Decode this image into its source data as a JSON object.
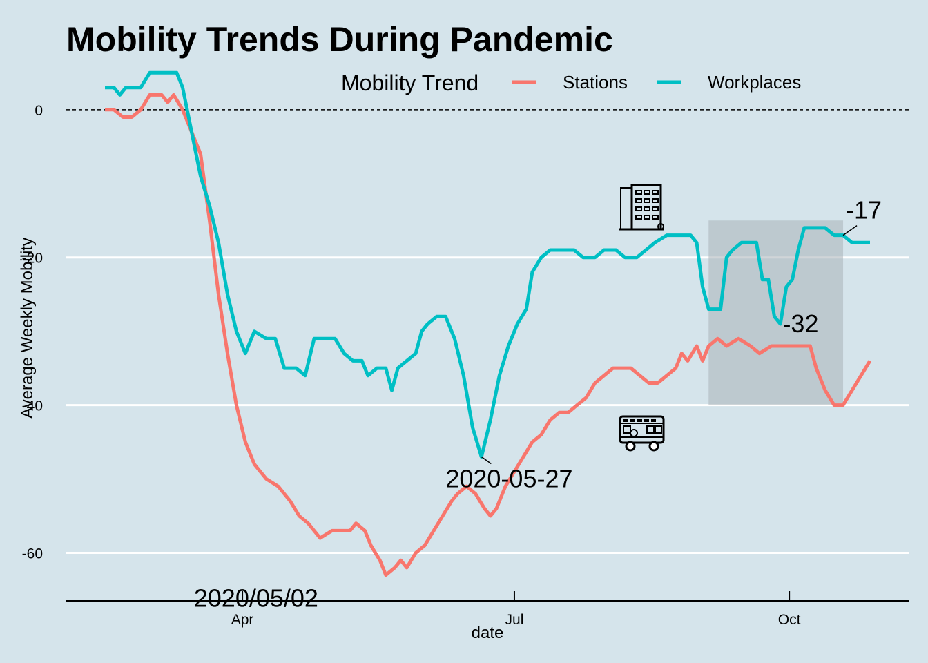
{
  "chart_data": {
    "type": "line",
    "title": "Mobility Trends During Pandemic",
    "xlabel": "date",
    "ylabel": "Average Weekly Mobility",
    "legend": {
      "title": "Mobility Trend",
      "placement": "top-right"
    },
    "x_range": [
      "2020-02-15",
      "2020-10-28"
    ],
    "ylim": [
      -66.5,
      5.5
    ],
    "y_ticks": [
      0,
      -20,
      -40,
      -60
    ],
    "y_tick_labels": [
      "0",
      "-20",
      "-40",
      "-60"
    ],
    "x_ticks": [
      {
        "date": "2020-04-01",
        "label": "Apr"
      },
      {
        "date": "2020-07-01",
        "label": "Jul"
      },
      {
        "date": "2020-10-01",
        "label": "Oct"
      }
    ],
    "grid": "horizontal-major-only",
    "reference_line": {
      "y": 0,
      "style": "dashed"
    },
    "series": [
      {
        "name": "Stations",
        "color": "#f8766d",
        "points": [
          [
            "2020-02-15",
            0
          ],
          [
            "2020-02-18",
            0
          ],
          [
            "2020-02-21",
            -1
          ],
          [
            "2020-02-24",
            -1
          ],
          [
            "2020-02-27",
            0
          ],
          [
            "2020-03-01",
            2
          ],
          [
            "2020-03-05",
            2
          ],
          [
            "2020-03-07",
            1
          ],
          [
            "2020-03-09",
            2
          ],
          [
            "2020-03-12",
            0
          ],
          [
            "2020-03-15",
            -3
          ],
          [
            "2020-03-18",
            -6
          ],
          [
            "2020-03-21",
            -15
          ],
          [
            "2020-03-24",
            -25
          ],
          [
            "2020-03-27",
            -33
          ],
          [
            "2020-03-30",
            -40
          ],
          [
            "2020-04-02",
            -45
          ],
          [
            "2020-04-05",
            -48
          ],
          [
            "2020-04-09",
            -50
          ],
          [
            "2020-04-13",
            -51
          ],
          [
            "2020-04-17",
            -53
          ],
          [
            "2020-04-20",
            -55
          ],
          [
            "2020-04-23",
            -56
          ],
          [
            "2020-04-27",
            -58
          ],
          [
            "2020-05-01",
            -57
          ],
          [
            "2020-05-04",
            -57
          ],
          [
            "2020-05-07",
            -57
          ],
          [
            "2020-05-09",
            -56
          ],
          [
            "2020-05-12",
            -57
          ],
          [
            "2020-05-14",
            -59
          ],
          [
            "2020-05-17",
            -61
          ],
          [
            "2020-05-19",
            -63
          ],
          [
            "2020-05-22",
            -62
          ],
          [
            "2020-05-24",
            -61
          ],
          [
            "2020-05-26",
            -62
          ],
          [
            "2020-05-29",
            -60
          ],
          [
            "2020-06-01",
            -59
          ],
          [
            "2020-06-04",
            -57
          ],
          [
            "2020-06-07",
            -55
          ],
          [
            "2020-06-10",
            -53
          ],
          [
            "2020-06-12",
            -52
          ],
          [
            "2020-06-15",
            -51
          ],
          [
            "2020-06-18",
            -52
          ],
          [
            "2020-06-21",
            -54
          ],
          [
            "2020-06-23",
            -55
          ],
          [
            "2020-06-25",
            -54
          ],
          [
            "2020-06-28",
            -51
          ],
          [
            "2020-07-01",
            -49
          ],
          [
            "2020-07-04",
            -47
          ],
          [
            "2020-07-07",
            -45
          ],
          [
            "2020-07-10",
            -44
          ],
          [
            "2020-07-13",
            -42
          ],
          [
            "2020-07-16",
            -41
          ],
          [
            "2020-07-19",
            -41
          ],
          [
            "2020-07-22",
            -40
          ],
          [
            "2020-07-25",
            -39
          ],
          [
            "2020-07-28",
            -37
          ],
          [
            "2020-07-31",
            -36
          ],
          [
            "2020-08-03",
            -35
          ],
          [
            "2020-08-06",
            -35
          ],
          [
            "2020-08-09",
            -35
          ],
          [
            "2020-08-12",
            -36
          ],
          [
            "2020-08-15",
            -37
          ],
          [
            "2020-08-18",
            -37
          ],
          [
            "2020-08-21",
            -36
          ],
          [
            "2020-08-24",
            -35
          ],
          [
            "2020-08-26",
            -33
          ],
          [
            "2020-08-28",
            -34
          ],
          [
            "2020-08-31",
            -32
          ],
          [
            "2020-09-02",
            -34
          ],
          [
            "2020-09-04",
            -32
          ],
          [
            "2020-09-07",
            -31
          ],
          [
            "2020-09-10",
            -32
          ],
          [
            "2020-09-14",
            -31
          ],
          [
            "2020-09-18",
            -32
          ],
          [
            "2020-09-21",
            -33
          ],
          [
            "2020-09-25",
            -32
          ],
          [
            "2020-09-28",
            -32
          ],
          [
            "2020-10-02",
            -32
          ],
          [
            "2020-10-05",
            -32
          ],
          [
            "2020-10-08",
            -32
          ],
          [
            "2020-10-10",
            -35
          ],
          [
            "2020-10-13",
            -38
          ],
          [
            "2020-10-16",
            -40
          ],
          [
            "2020-10-19",
            -40
          ],
          [
            "2020-10-22",
            -38
          ],
          [
            "2020-10-25",
            -36
          ],
          [
            "2020-10-28",
            -34
          ]
        ]
      },
      {
        "name": "Workplaces",
        "color": "#00bfc4",
        "points": [
          [
            "2020-02-15",
            3
          ],
          [
            "2020-02-18",
            3
          ],
          [
            "2020-02-20",
            2
          ],
          [
            "2020-02-22",
            3
          ],
          [
            "2020-02-27",
            3
          ],
          [
            "2020-03-01",
            5
          ],
          [
            "2020-03-05",
            5
          ],
          [
            "2020-03-10",
            5
          ],
          [
            "2020-03-12",
            3
          ],
          [
            "2020-03-15",
            -3
          ],
          [
            "2020-03-18",
            -9
          ],
          [
            "2020-03-21",
            -13
          ],
          [
            "2020-03-24",
            -18
          ],
          [
            "2020-03-27",
            -25
          ],
          [
            "2020-03-30",
            -30
          ],
          [
            "2020-04-02",
            -33
          ],
          [
            "2020-04-05",
            -30
          ],
          [
            "2020-04-09",
            -31
          ],
          [
            "2020-04-12",
            -31
          ],
          [
            "2020-04-15",
            -35
          ],
          [
            "2020-04-19",
            -35
          ],
          [
            "2020-04-22",
            -36
          ],
          [
            "2020-04-25",
            -31
          ],
          [
            "2020-04-29",
            -31
          ],
          [
            "2020-05-02",
            -31
          ],
          [
            "2020-05-05",
            -33
          ],
          [
            "2020-05-08",
            -34
          ],
          [
            "2020-05-11",
            -34
          ],
          [
            "2020-05-13",
            -36
          ],
          [
            "2020-05-16",
            -35
          ],
          [
            "2020-05-19",
            -35
          ],
          [
            "2020-05-21",
            -38
          ],
          [
            "2020-05-23",
            -35
          ],
          [
            "2020-05-26",
            -34
          ],
          [
            "2020-05-29",
            -33
          ],
          [
            "2020-05-31",
            -30
          ],
          [
            "2020-06-02",
            -29
          ],
          [
            "2020-06-05",
            -28
          ],
          [
            "2020-06-08",
            -28
          ],
          [
            "2020-06-11",
            -31
          ],
          [
            "2020-06-14",
            -36
          ],
          [
            "2020-06-17",
            -43
          ],
          [
            "2020-06-20",
            -47
          ],
          [
            "2020-06-23",
            -42
          ],
          [
            "2020-06-26",
            -36
          ],
          [
            "2020-06-29",
            -32
          ],
          [
            "2020-07-02",
            -29
          ],
          [
            "2020-07-05",
            -27
          ],
          [
            "2020-07-07",
            -22
          ],
          [
            "2020-07-10",
            -20
          ],
          [
            "2020-07-13",
            -19
          ],
          [
            "2020-07-17",
            -19
          ],
          [
            "2020-07-21",
            -19
          ],
          [
            "2020-07-24",
            -20
          ],
          [
            "2020-07-28",
            -20
          ],
          [
            "2020-07-31",
            -19
          ],
          [
            "2020-08-04",
            -19
          ],
          [
            "2020-08-07",
            -20
          ],
          [
            "2020-08-11",
            -20
          ],
          [
            "2020-08-14",
            -19
          ],
          [
            "2020-08-17",
            -18
          ],
          [
            "2020-08-21",
            -17
          ],
          [
            "2020-08-25",
            -17
          ],
          [
            "2020-08-29",
            -17
          ],
          [
            "2020-08-31",
            -18
          ],
          [
            "2020-09-02",
            -24
          ],
          [
            "2020-09-04",
            -27
          ],
          [
            "2020-09-06",
            -27
          ],
          [
            "2020-09-08",
            -27
          ],
          [
            "2020-09-10",
            -20
          ],
          [
            "2020-09-12",
            -19
          ],
          [
            "2020-09-15",
            -18
          ],
          [
            "2020-09-18",
            -18
          ],
          [
            "2020-09-20",
            -18
          ],
          [
            "2020-09-22",
            -23
          ],
          [
            "2020-09-24",
            -23
          ],
          [
            "2020-09-26",
            -28
          ],
          [
            "2020-09-28",
            -29
          ],
          [
            "2020-09-30",
            -24
          ],
          [
            "2020-10-02",
            -23
          ],
          [
            "2020-10-04",
            -19
          ],
          [
            "2020-10-06",
            -16
          ],
          [
            "2020-10-09",
            -16
          ],
          [
            "2020-10-13",
            -16
          ],
          [
            "2020-10-16",
            -17
          ],
          [
            "2020-10-19",
            -17
          ],
          [
            "2020-10-22",
            -18
          ],
          [
            "2020-10-25",
            -18
          ],
          [
            "2020-10-28",
            -18
          ]
        ]
      }
    ],
    "highlight_region": {
      "x_start": "2020-09-04",
      "x_end": "2020-10-19",
      "y_min": -40,
      "y_max": -15
    },
    "annotations": [
      {
        "text": "2020-05-27",
        "x": "2020-06-20",
        "y": -47
      },
      {
        "text": "2020/05/02",
        "x": "2020-03-31",
        "y": -63
      },
      {
        "text": "-17",
        "x": "2020-10-19",
        "y": -17
      },
      {
        "text": "-32",
        "x": "2020-10-08",
        "y": -32
      }
    ],
    "icons": [
      {
        "name": "office-building-icon",
        "x": "2020-09-04",
        "y": -15
      },
      {
        "name": "bus-icon",
        "x": "2020-09-04",
        "y": -40
      }
    ]
  }
}
